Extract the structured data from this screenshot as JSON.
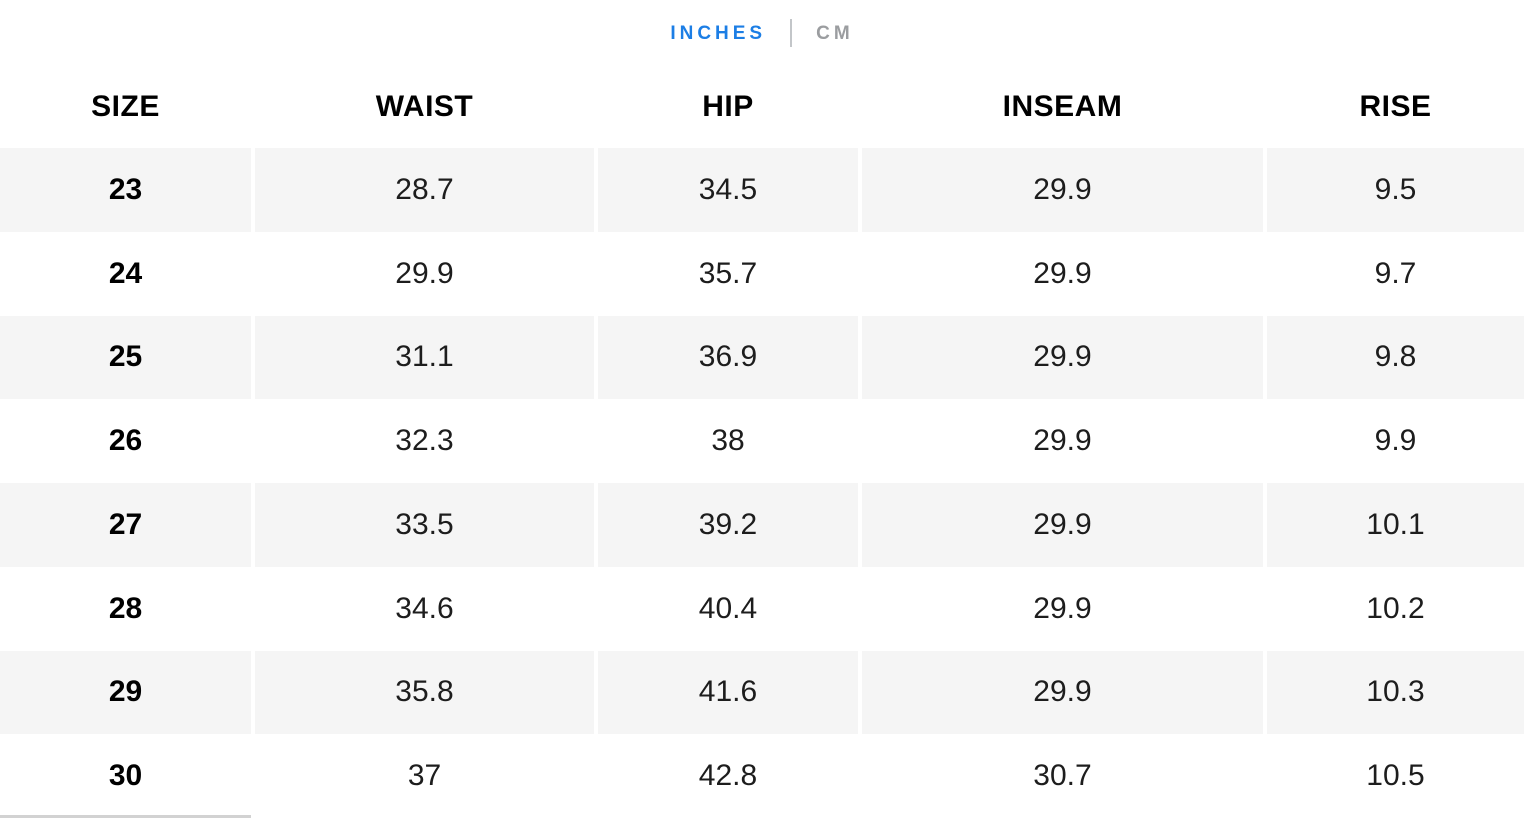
{
  "unit_toggle": {
    "inches_label": "INCHES",
    "cm_label": "CM",
    "active_unit": "INCHES"
  },
  "table": {
    "columns": [
      "SIZE",
      "WAIST",
      "HIP",
      "INSEAM",
      "RISE"
    ],
    "rows": [
      {
        "size": "23",
        "waist": "28.7",
        "hip": "34.5",
        "inseam": "29.9",
        "rise": "9.5"
      },
      {
        "size": "24",
        "waist": "29.9",
        "hip": "35.7",
        "inseam": "29.9",
        "rise": "9.7"
      },
      {
        "size": "25",
        "waist": "31.1",
        "hip": "36.9",
        "inseam": "29.9",
        "rise": "9.8"
      },
      {
        "size": "26",
        "waist": "32.3",
        "hip": "38",
        "inseam": "29.9",
        "rise": "9.9"
      },
      {
        "size": "27",
        "waist": "33.5",
        "hip": "39.2",
        "inseam": "29.9",
        "rise": "10.1"
      },
      {
        "size": "28",
        "waist": "34.6",
        "hip": "40.4",
        "inseam": "29.9",
        "rise": "10.2"
      },
      {
        "size": "29",
        "waist": "35.8",
        "hip": "41.6",
        "inseam": "29.9",
        "rise": "10.3"
      },
      {
        "size": "30",
        "waist": "37",
        "hip": "42.8",
        "inseam": "30.7",
        "rise": "10.5"
      }
    ]
  },
  "colors": {
    "accent_blue": "#1c7ee5",
    "inactive_gray": "#9b9da0",
    "row_stripe": "#f5f5f5"
  }
}
